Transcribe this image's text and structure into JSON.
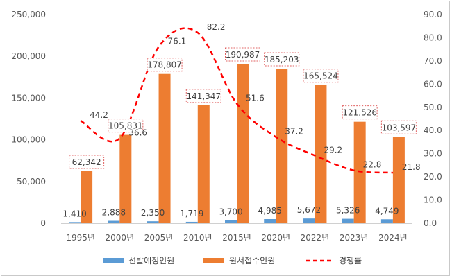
{
  "chart_data": {
    "type": "bar",
    "categories": [
      "1995년",
      "2000년",
      "2005년",
      "2010년",
      "2015년",
      "2020년",
      "2022년",
      "2023년",
      "2024년"
    ],
    "series": [
      {
        "name": "선발예정인원",
        "type": "bar",
        "axis": "left",
        "values": [
          1410,
          2888,
          2350,
          1719,
          3700,
          4985,
          5672,
          5326,
          4749
        ],
        "labels": [
          "1,410",
          "2,888",
          "2,350",
          "1,719",
          "3,700",
          "4,985",
          "5,672",
          "5,326",
          "4,749"
        ],
        "color": "#5B9BD5"
      },
      {
        "name": "원서접수인원",
        "type": "bar",
        "axis": "left",
        "values": [
          62342,
          105831,
          178807,
          141347,
          190987,
          185203,
          165524,
          121526,
          103597
        ],
        "labels": [
          "62,342",
          "105,831",
          "178,807",
          "141,347",
          "190,987",
          "185,203",
          "165,524",
          "121,526",
          "103,597"
        ],
        "color": "#ED7D31"
      },
      {
        "name": "경쟁률",
        "type": "line",
        "axis": "right",
        "values": [
          44.2,
          36.6,
          76.1,
          82.2,
          51.6,
          37.2,
          29.2,
          22.8,
          21.8
        ],
        "labels": [
          "44.2",
          "36.6",
          "76.1",
          "82.2",
          "51.6",
          "37.2",
          "29.2",
          "22.8",
          "21.8"
        ],
        "color": "#FF0000",
        "dash": true
      }
    ],
    "y_left": {
      "range": [
        0,
        250000
      ],
      "ticks": [
        0,
        50000,
        100000,
        150000,
        200000,
        250000
      ],
      "tick_labels": [
        "0",
        "50,000",
        "100,000",
        "150,000",
        "200,000",
        "250,000"
      ]
    },
    "y_right": {
      "range": [
        0,
        90
      ],
      "ticks": [
        0,
        10,
        20,
        30,
        40,
        50,
        60,
        70,
        80,
        90
      ],
      "tick_labels": [
        "0.0",
        "10.0",
        "20.0",
        "30.0",
        "40.0",
        "50.0",
        "60.0",
        "70.0",
        "80.0",
        "90.0"
      ]
    },
    "grid": false,
    "legend_position": "bottom"
  }
}
